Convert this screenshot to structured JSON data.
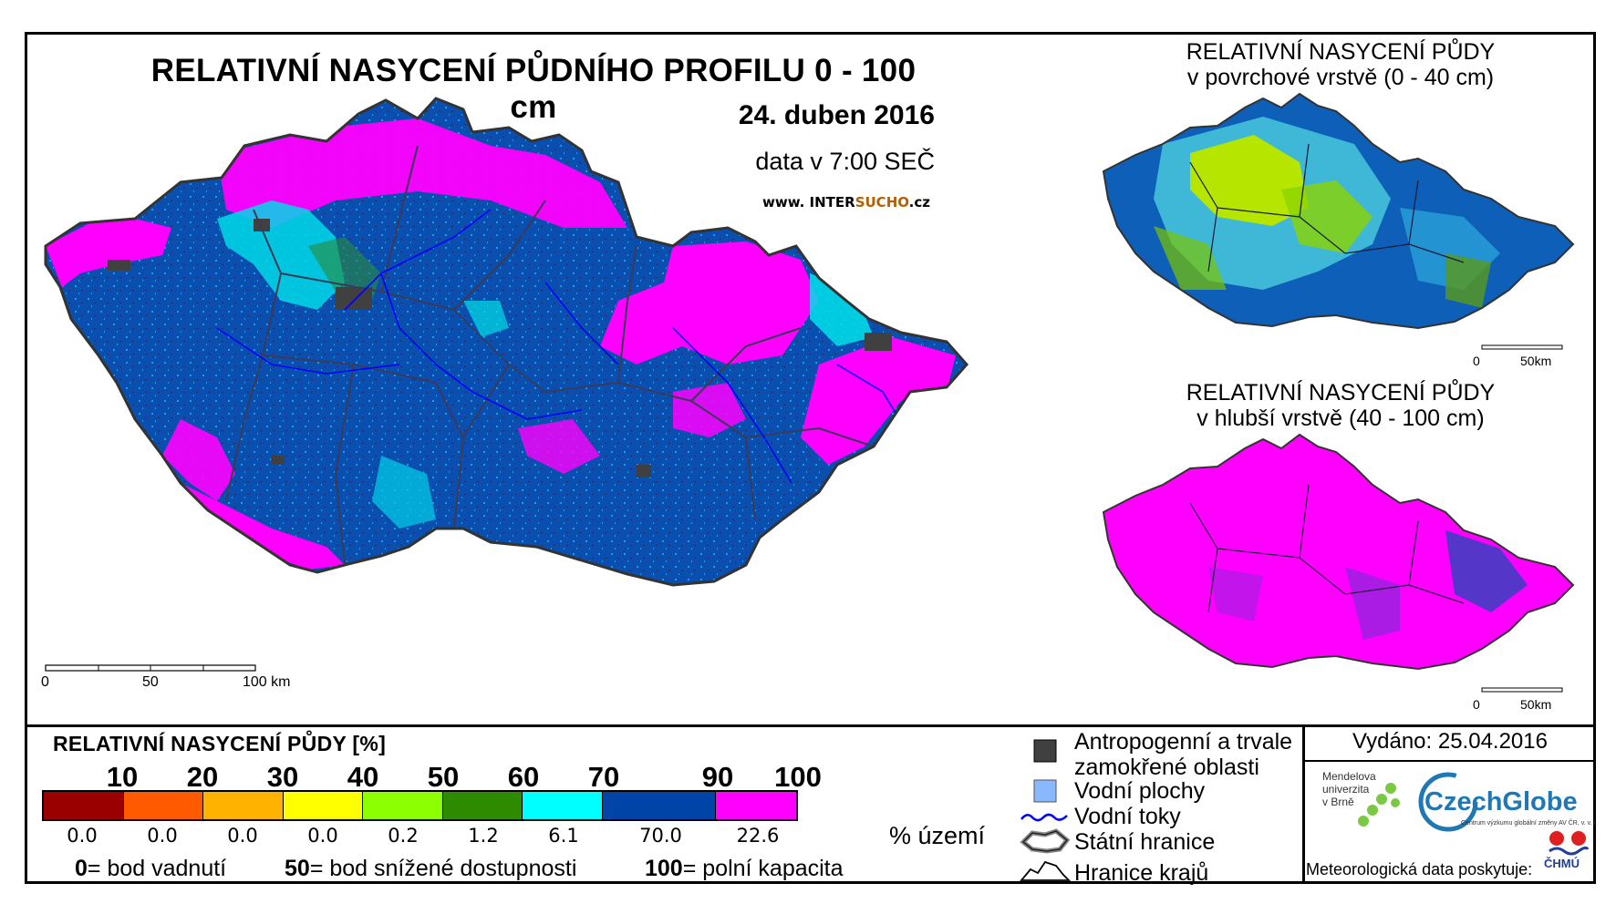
{
  "title": "RELATIVNÍ NASYCENÍ PŮDNÍHO PROFILU 0 - 100 cm",
  "date": "24. duben 2016",
  "data_time": "data v 7:00 SEČ",
  "website": {
    "prefix": "www. INTER",
    "highlight": "SUCHO",
    "suffix": ".cz"
  },
  "main_map": {
    "scale_labels": [
      "0",
      "50",
      "100 km"
    ],
    "classes_shown": [
      "70-90 (dark blue)",
      "90-100 (magenta)",
      "60-70 (cyan)"
    ]
  },
  "inset_surface": {
    "title_line1": "RELATIVNÍ NASYCENÍ PŮDY",
    "title_line2": "v povrchové vrstvě (0 - 40 cm)",
    "scale_labels": [
      "0",
      "50km"
    ]
  },
  "inset_deep": {
    "title_line1": "RELATIVNÍ NASYCENÍ PŮDY",
    "title_line2": "v hlubší vrstvě (40 - 100 cm)",
    "scale_labels": [
      "0",
      "50km"
    ]
  },
  "legend": {
    "title": "RELATIVNÍ NASYCENÍ PŮDY [%]",
    "ticks": [
      "10",
      "20",
      "30",
      "40",
      "50",
      "60",
      "70",
      "90",
      "100"
    ],
    "colors": [
      "#9b0000",
      "#ff5a00",
      "#ffb300",
      "#ffff00",
      "#8cff00",
      "#2e8b00",
      "#00ffff",
      "#0044a8",
      "#ff00ff"
    ],
    "area_percent": [
      "0.0",
      "0.0",
      "0.0",
      "0.0",
      "0.2",
      "1.2",
      "6.1",
      "70.0",
      "22.6"
    ],
    "area_unit": "% území",
    "definitions": [
      {
        "value": "0",
        "text": "= bod vadnutí"
      },
      {
        "value": "50",
        "text": "= bod snížené dostupnosti"
      },
      {
        "value": "100",
        "text": "= polní kapacita"
      }
    ]
  },
  "symbols": {
    "anthropogenic": [
      "Antropogenní a trvale",
      "zamokřené oblasti"
    ],
    "water_bodies": "Vodní plochy",
    "rivers": "Vodní toky",
    "state_border": "Státní hranice",
    "regions_border": "Hranice krajů",
    "colors": {
      "anthropogenic": "#404040",
      "water": "#8ab8ff",
      "river": "#0000ff"
    }
  },
  "issued": "Vydáno: 25.04.2016",
  "logos": {
    "mendel": [
      "Mendelova",
      "univerzita",
      "v Brně"
    ],
    "czechglobe": "CzechGlobe",
    "czechglobe_sub": "Centrum výzkumu globální změny AV ČR, v. v. i.",
    "chmu": "ČHMÚ"
  },
  "data_provider": "Meteorologická data poskytuje:"
}
